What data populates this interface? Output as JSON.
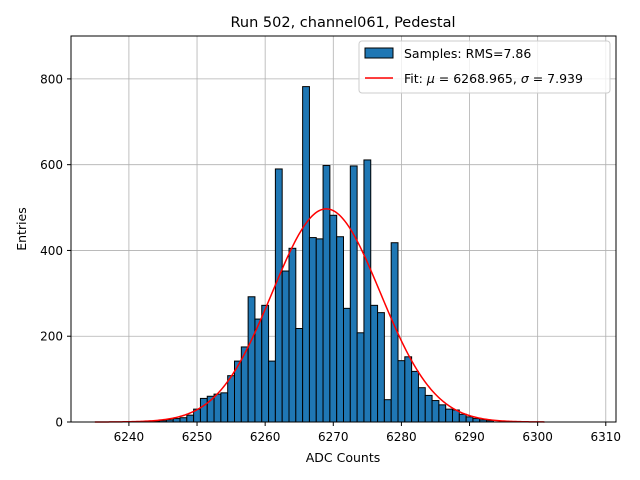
{
  "chart_data": {
    "type": "bar",
    "title": "Run 502, channel061, Pedestal",
    "xlabel": "ADC Counts",
    "ylabel": "Entries",
    "xlim": [
      6231.5,
      6311.5
    ],
    "ylim": [
      0,
      900
    ],
    "xticks": [
      6240,
      6250,
      6260,
      6270,
      6280,
      6290,
      6300,
      6310
    ],
    "yticks": [
      0,
      200,
      400,
      600,
      800
    ],
    "grid": true,
    "legend_position": "top-right",
    "bin_width": 1,
    "bins": [
      [
        6244,
        2
      ],
      [
        6245,
        3
      ],
      [
        6246,
        5
      ],
      [
        6247,
        8
      ],
      [
        6248,
        10
      ],
      [
        6249,
        16
      ],
      [
        6250,
        30
      ],
      [
        6251,
        55
      ],
      [
        6252,
        60
      ],
      [
        6253,
        65
      ],
      [
        6254,
        68
      ],
      [
        6255,
        108
      ],
      [
        6256,
        142
      ],
      [
        6257,
        175
      ],
      [
        6258,
        292
      ],
      [
        6259,
        240
      ],
      [
        6260,
        272
      ],
      [
        6261,
        142
      ],
      [
        6262,
        590
      ],
      [
        6263,
        352
      ],
      [
        6264,
        405
      ],
      [
        6265,
        218
      ],
      [
        6266,
        782
      ],
      [
        6267,
        430
      ],
      [
        6268,
        427
      ],
      [
        6269,
        598
      ],
      [
        6270,
        482
      ],
      [
        6271,
        432
      ],
      [
        6272,
        265
      ],
      [
        6273,
        597
      ],
      [
        6274,
        208
      ],
      [
        6275,
        611
      ],
      [
        6276,
        272
      ],
      [
        6277,
        255
      ],
      [
        6278,
        52
      ],
      [
        6279,
        418
      ],
      [
        6280,
        143
      ],
      [
        6281,
        152
      ],
      [
        6282,
        118
      ],
      [
        6283,
        80
      ],
      [
        6284,
        62
      ],
      [
        6285,
        50
      ],
      [
        6286,
        40
      ],
      [
        6287,
        30
      ],
      [
        6288,
        28
      ],
      [
        6289,
        18
      ],
      [
        6290,
        12
      ],
      [
        6291,
        8
      ],
      [
        6292,
        5
      ],
      [
        6293,
        3
      ]
    ],
    "fit": {
      "mu": 6268.965,
      "sigma": 7.939,
      "amplitude": 497,
      "x_range": [
        6235,
        6301
      ]
    },
    "series": [
      {
        "name": "Samples: RMS=7.86",
        "kind": "histogram",
        "color": "#1f77b4",
        "edge": "#000000"
      },
      {
        "name_prefix": "Fit: ",
        "name_mu": "μ",
        "name_mid": " = 6268.965, ",
        "name_sigma": "σ",
        "name_suffix": " = 7.939",
        "kind": "line",
        "color": "#ff0000"
      }
    ]
  }
}
